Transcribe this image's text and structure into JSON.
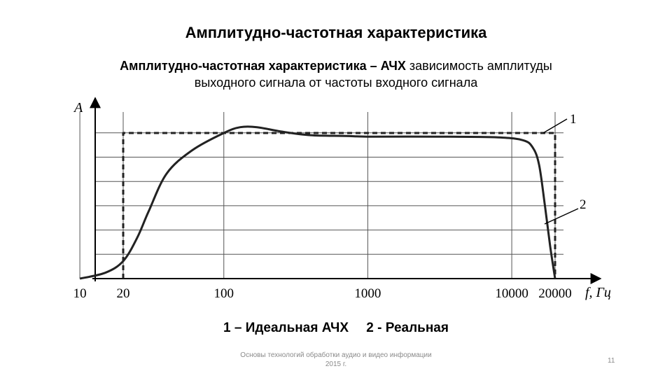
{
  "slide": {
    "title": "Амплитудно-частотная характеристика",
    "subtitle_bold": "Амплитудно-частотная характеристика – АЧХ",
    "subtitle_rest_line1": " зависимость амплитуды",
    "subtitle_line2": "выходного сигнала от частоты входного сигнала",
    "legend_1": "1 – Идеальная АЧХ",
    "legend_2": "2 - Реальная",
    "footer_line1": "Основы технологий обработки аудио и видео информации",
    "footer_line2": "2015 г.",
    "page_number": "11"
  },
  "chart_data": {
    "type": "line",
    "title": "",
    "xlabel": "f, Гц",
    "ylabel": "A",
    "x_scale": "log",
    "x_ticks": [
      10,
      20,
      100,
      1000,
      10000,
      20000
    ],
    "x_tick_labels": [
      "10",
      "20",
      "100",
      "1000",
      "10000",
      "20000"
    ],
    "xlim": [
      10,
      32000
    ],
    "ylim": [
      0,
      1.2
    ],
    "grid": true,
    "series": [
      {
        "name": "1",
        "style": "dashed",
        "x": [
          20,
          20,
          20000,
          20000
        ],
        "y": [
          0,
          1.0,
          1.0,
          0
        ]
      },
      {
        "name": "2",
        "style": "solid",
        "x": [
          10,
          15,
          20,
          25,
          30,
          40,
          60,
          100,
          130,
          170,
          250,
          400,
          700,
          1000,
          3000,
          8000,
          12000,
          14000,
          15500,
          17000,
          18500,
          20000
        ],
        "y": [
          0.0,
          0.04,
          0.12,
          0.28,
          0.46,
          0.72,
          0.88,
          1.0,
          1.04,
          1.04,
          1.01,
          0.985,
          0.98,
          0.975,
          0.975,
          0.97,
          0.95,
          0.9,
          0.78,
          0.5,
          0.22,
          0.0
        ]
      }
    ]
  }
}
